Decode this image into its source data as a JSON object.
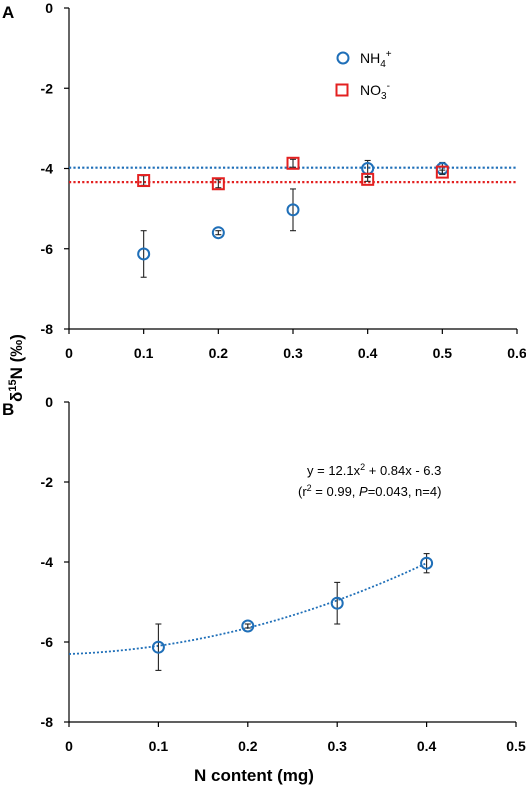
{
  "colors": {
    "nh4": "#1f6fb8",
    "no3": "#e32020",
    "axis": "#000000",
    "errorbar": "#222222"
  },
  "y_axis_title": {
    "base": "δ",
    "sup": "15",
    "rest": "N (‰)"
  },
  "x_axis_title": "N content (mg)",
  "chart_data": [
    {
      "panel": "A",
      "type": "scatter",
      "xlim": [
        0,
        0.6
      ],
      "ylim": [
        -8,
        0
      ],
      "x_ticks": [
        "0",
        "0.1",
        "0.2",
        "0.3",
        "0.4",
        "0.5",
        "0.6"
      ],
      "y_ticks": [
        "0",
        "-2",
        "-4",
        "-6",
        "-8"
      ],
      "grid": false,
      "legend_placement": "top-right",
      "series": [
        {
          "key": "nh4",
          "name": "NH4+",
          "name_main": "NH",
          "name_sub": "4",
          "name_sup": "+",
          "marker": "circle",
          "color": "#1f6fb8",
          "x": [
            0.1,
            0.2,
            0.3,
            0.4,
            0.5
          ],
          "y": [
            -6.13,
            -5.6,
            -5.03,
            -4.0,
            -4.0
          ],
          "err": [
            0.58,
            0.05,
            0.52,
            0.2,
            0.15
          ],
          "mean_line": -3.98
        },
        {
          "key": "no3",
          "name": "NO3-",
          "name_main": "NO",
          "name_sub": "3",
          "name_sup": "-",
          "marker": "square",
          "color": "#e32020",
          "x": [
            0.1,
            0.2,
            0.3,
            0.4,
            0.5
          ],
          "y": [
            -4.3,
            -4.38,
            -3.87,
            -4.27,
            -4.09
          ],
          "err": [
            0.12,
            0.1,
            0.1,
            0.05,
            0.05
          ],
          "mean_line": -4.34
        }
      ]
    },
    {
      "panel": "B",
      "type": "scatter",
      "xlim": [
        0,
        0.5
      ],
      "ylim": [
        -8,
        0
      ],
      "x_ticks": [
        "0",
        "0.1",
        "0.2",
        "0.3",
        "0.4",
        "0.5"
      ],
      "y_ticks": [
        "0",
        "-2",
        "-4",
        "-6",
        "-8"
      ],
      "grid": false,
      "series": [
        {
          "key": "nh4",
          "marker": "circle",
          "color": "#1f6fb8",
          "x": [
            0.1,
            0.2,
            0.3,
            0.4
          ],
          "y": [
            -6.13,
            -5.6,
            -5.03,
            -4.03
          ],
          "err": [
            0.58,
            0.05,
            0.52,
            0.24
          ]
        }
      ],
      "fit": {
        "a": 12.1,
        "b": 0.84,
        "c": -6.3,
        "x_range": [
          0,
          0.4
        ]
      },
      "annotation": {
        "line1_pre": "y = 12.1x",
        "line1_sup": "2",
        "line1_post": " + 0.84x - 6.3",
        "line2_a": "(r",
        "line2_sup": "2",
        "line2_b": " = 0.99, ",
        "line2_italic": "P",
        "line2_c": "=0.043, n=4)"
      }
    }
  ]
}
